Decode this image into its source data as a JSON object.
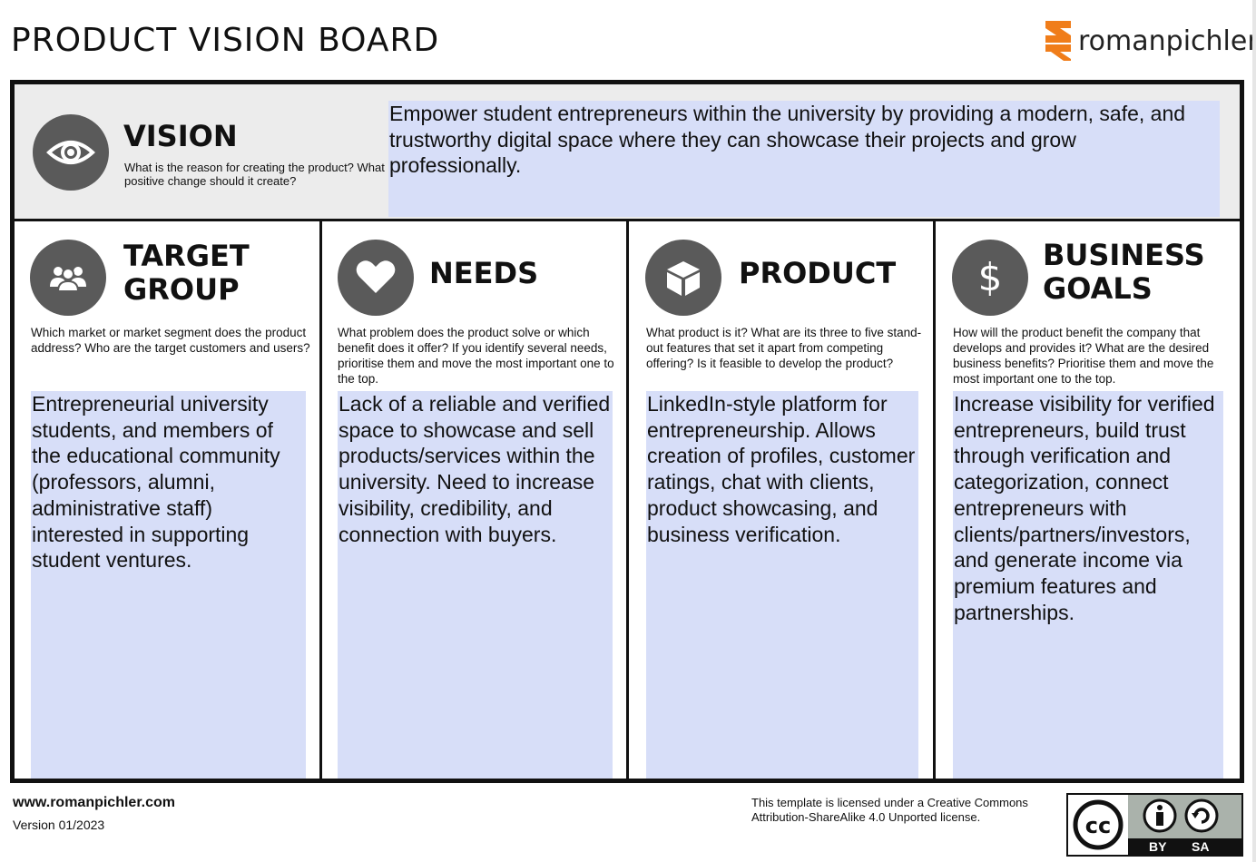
{
  "header": {
    "title": "PRODUCT VISION BOARD",
    "logo_text": "romanpichler"
  },
  "vision": {
    "title": "VISION",
    "question": "What is the reason for creating the product? What positive change should it create?",
    "answer": "Empower student entrepreneurs within the university by providing a modern, safe, and trustworthy digital space where they can showcase their projects and grow professionally.",
    "icon": "eye-icon"
  },
  "columns": [
    {
      "title_line1": "TARGET",
      "title_line2": "GROUP",
      "question": "Which market or market segment does the product address? Who are the target customers and users?",
      "answer": "Entrepreneurial university students, and members of the educational community (professors, alumni, administrative staff) interested in supporting student ventures.",
      "icon": "people-group-icon"
    },
    {
      "title_line1": "NEEDS",
      "title_line2": "",
      "question": "What problem does the product solve or which benefit does it offer? If you identify several needs, prioritise them and move the most important one to the top.",
      "answer": "Lack of a reliable and verified space to showcase and sell products/services within the university. Need to increase visibility, credibility, and connection with buyers.",
      "icon": "heart-icon"
    },
    {
      "title_line1": "PRODUCT",
      "title_line2": "",
      "question": "What product is it? What are its three to five stand-out features that set it apart from competing offering? Is it feasible to develop the product?",
      "answer": "LinkedIn-style platform for entrepreneurship. Allows creation of profiles, customer ratings, chat with clients, product showcasing, and business verification.",
      "icon": "cube-icon"
    },
    {
      "title_line1": "BUSINESS",
      "title_line2": "GOALS",
      "question": "How will the product benefit the company that develops and provides it? What are the desired business benefits? Prioritise them and move the most important one to the top.",
      "answer": "Increase visibility for verified entrepreneurs, build trust through verification and categorization, connect entrepreneurs with clients/partners/investors, and generate income via premium features and partnerships.",
      "icon": "dollar-icon"
    }
  ],
  "footer": {
    "url": "www.romanpichler.com",
    "version": "Version 01/2023",
    "license": "This template is licensed under a Creative Commons Attribution-ShareAlike 4.0 Unported license.",
    "badge_by": "BY",
    "badge_sa": "SA"
  },
  "colors": {
    "answer_bg": "#d7def8",
    "vision_bg": "#ececec",
    "icon_bg": "#5a5a5a",
    "logo_orange": "#f07d1a"
  }
}
